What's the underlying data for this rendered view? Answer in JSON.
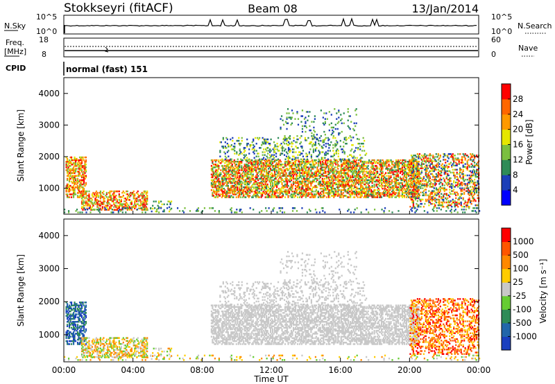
{
  "header": {
    "station": "Stokkseyri (fitACF)",
    "beam": "Beam 08",
    "date": "13/Jan/2014"
  },
  "nsky_panel": {
    "left_label": "N.Sky",
    "right_label": "N.Search",
    "left_ticks": [
      "10^5",
      "10^0"
    ],
    "right_ticks": [
      "10^5",
      "10^0"
    ]
  },
  "freq_panel": {
    "left_label_line1": "Freq.",
    "left_label_line2": "[MHz]",
    "left_ticks": [
      "18",
      "8"
    ],
    "right_label": "Nave",
    "right_ticks": [
      "60",
      "0"
    ]
  },
  "cpid": {
    "label": "CPID",
    "value": "normal (fast) 151"
  },
  "chart_data": [
    {
      "type": "heatmap",
      "name": "power",
      "ylabel": "Slant Range [km]",
      "yticks": [
        "4000",
        "3000",
        "2000",
        "1000"
      ],
      "ylim": [
        180,
        4500
      ],
      "colorbar_label": "Power [dB]",
      "colorbar_ticks": [
        "28",
        "24",
        "20",
        "16",
        "12",
        "8",
        "4"
      ],
      "colorbar_colors": [
        "#0000ff",
        "#1c3fb8",
        "#2e8b57",
        "#7bbf3f",
        "#e6e600",
        "#ff9900",
        "#ff6600",
        "#ff0000"
      ]
    },
    {
      "type": "heatmap",
      "name": "velocity",
      "ylabel": "Slant Range [km]",
      "yticks": [
        "4000",
        "3000",
        "2000",
        "1000"
      ],
      "ylim": [
        180,
        4500
      ],
      "colorbar_label": "Velocity [m s⁻¹]",
      "colorbar_ticks": [
        "1000",
        "500",
        "100",
        "25",
        "-25",
        "-100",
        "-500",
        "-1000"
      ],
      "colorbar_colors": [
        "#1a3fbf",
        "#2266aa",
        "#2e8b57",
        "#66cc33",
        "#c8c8c8",
        "#ffcc00",
        "#ff8800",
        "#ff5500",
        "#ff0000"
      ]
    }
  ],
  "xaxis": {
    "label": "Time UT",
    "ticks": [
      "00:00",
      "04:00",
      "08:00",
      "12:00",
      "16:00",
      "20:00",
      "00:00"
    ]
  }
}
